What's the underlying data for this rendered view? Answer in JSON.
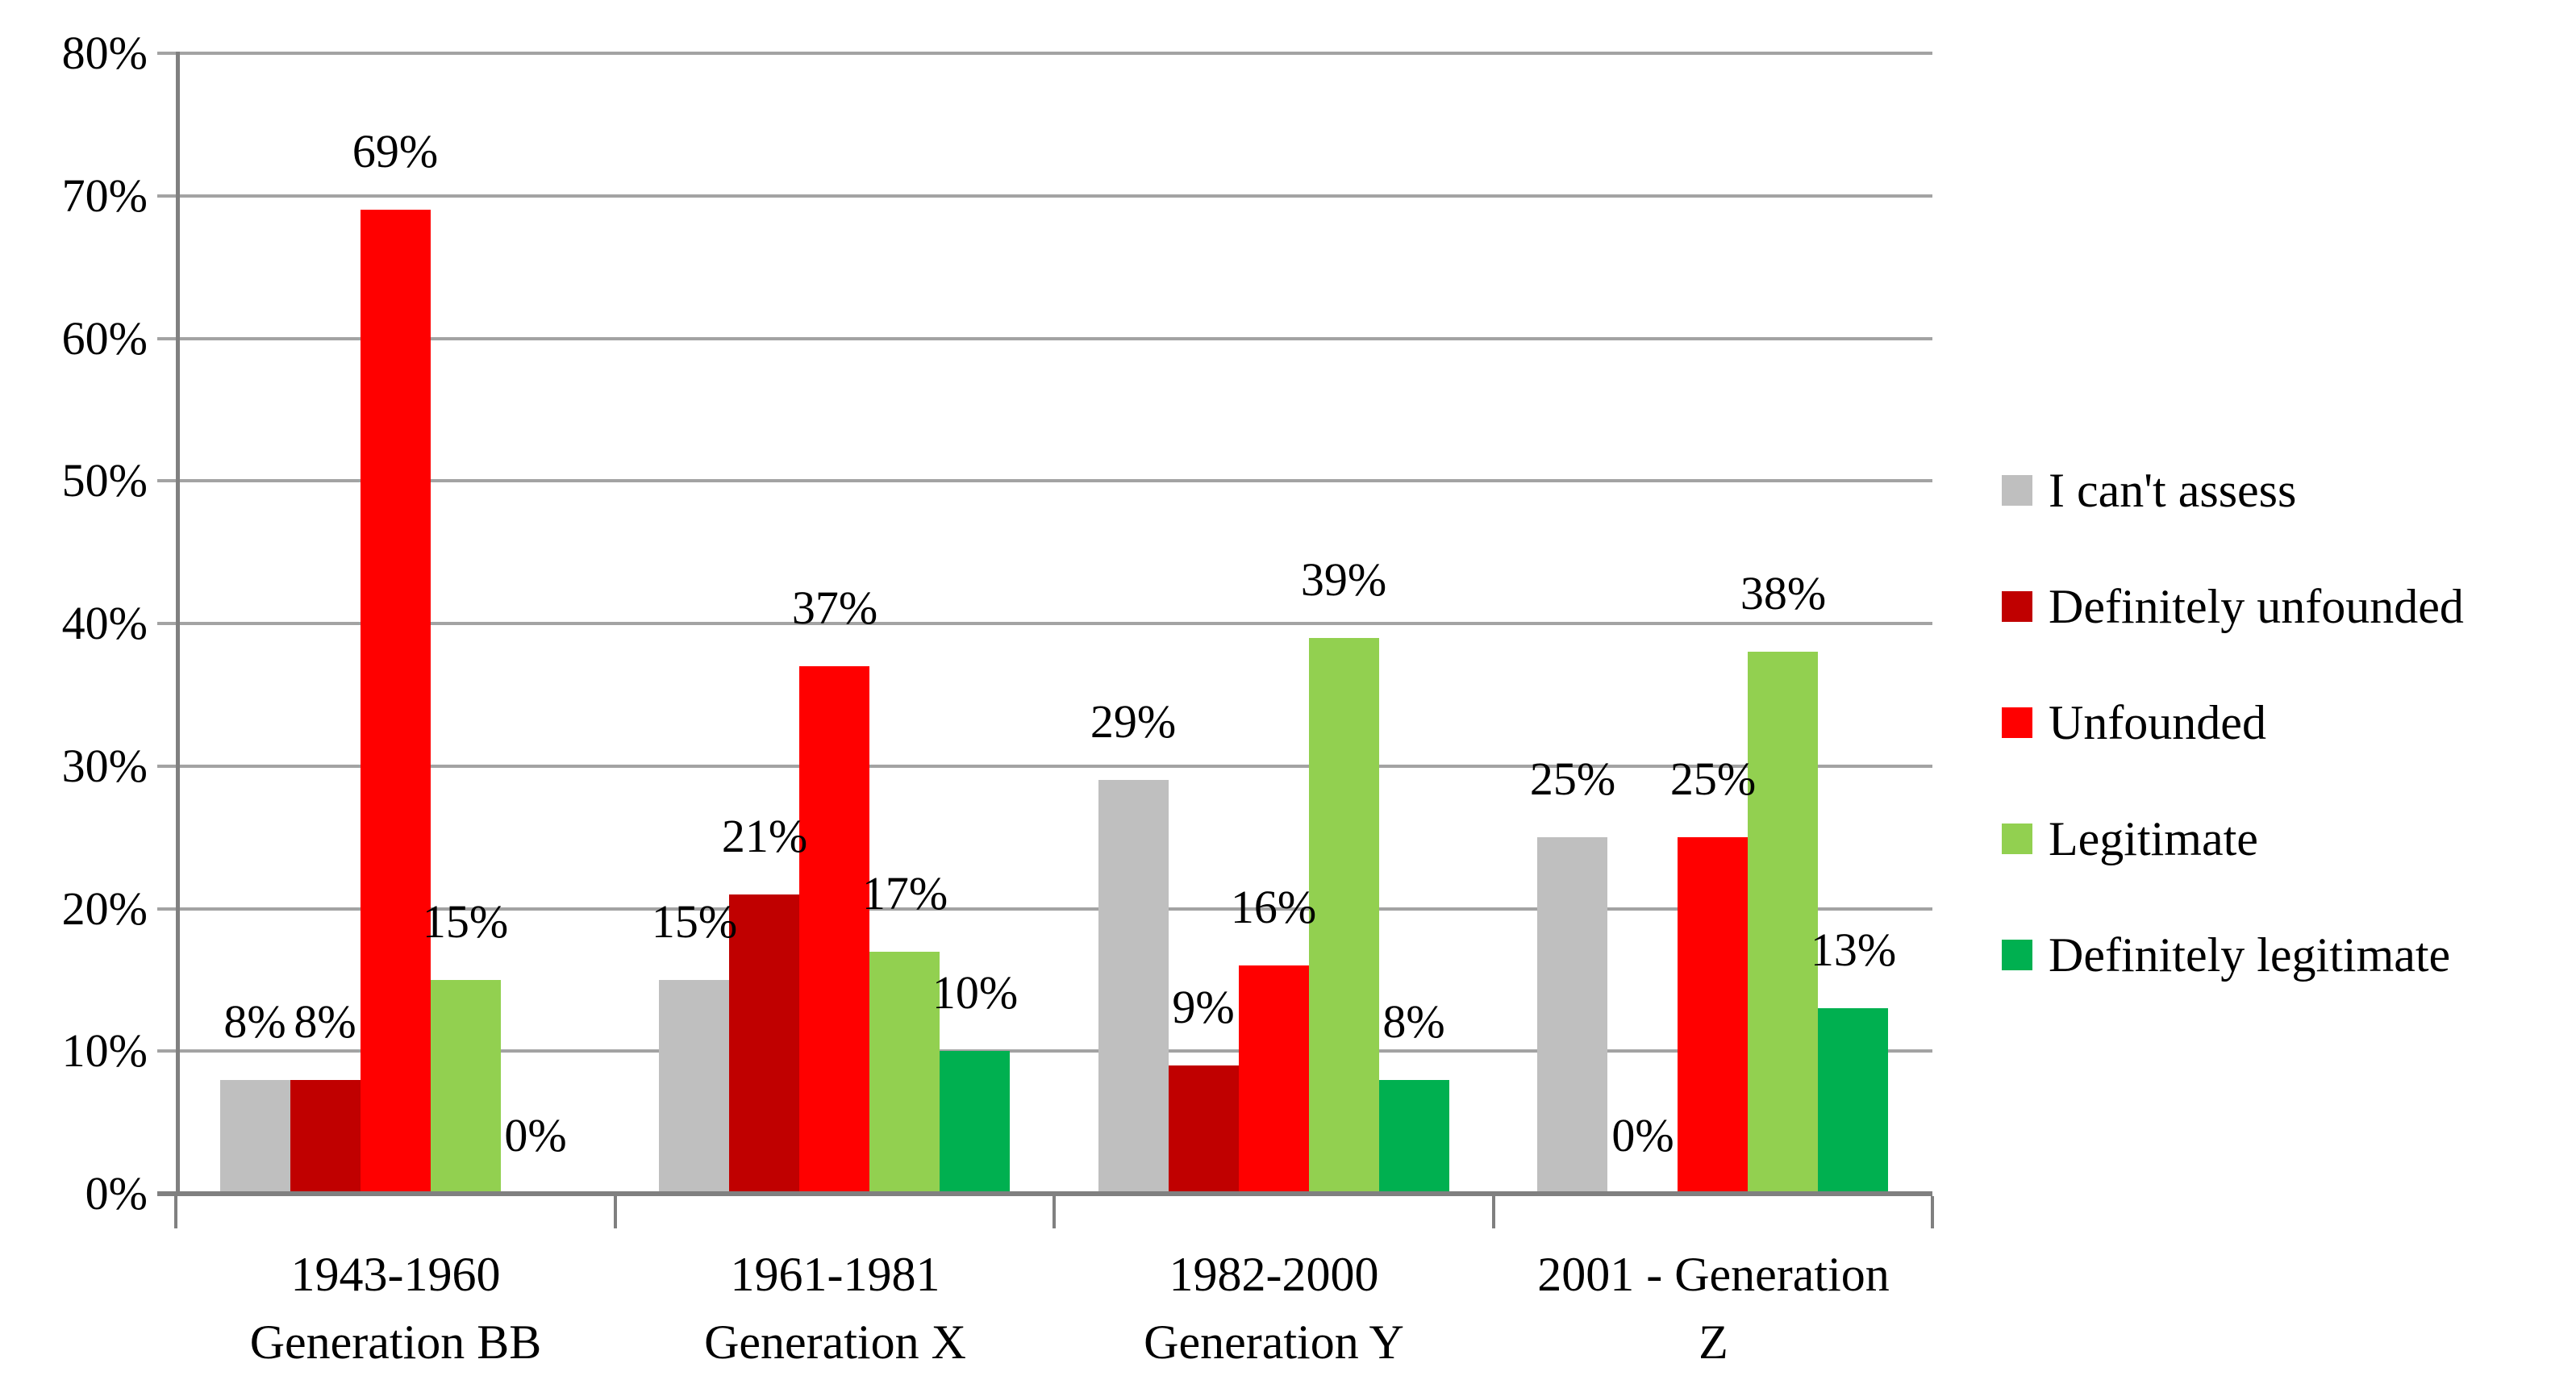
{
  "chart_data": {
    "type": "bar",
    "title": "",
    "xlabel": "",
    "ylabel": "",
    "categories": [
      {
        "line1": "1943-1960",
        "line2": "Generation BB"
      },
      {
        "line1": "1961-1981",
        "line2": "Generation X"
      },
      {
        "line1": "1982-2000",
        "line2": "Generation Y"
      },
      {
        "line1": "2001 - Generation",
        "line2": "Z"
      }
    ],
    "series": [
      {
        "name": "I can't assess",
        "color": "#BFBFBF",
        "values": [
          8,
          15,
          29,
          25
        ],
        "labels": [
          "8%",
          "15%",
          "29%",
          "25%"
        ]
      },
      {
        "name": "Definitely unfounded",
        "color": "#C00000",
        "values": [
          8,
          21,
          9,
          0
        ],
        "labels": [
          "8%",
          "21%",
          "9%",
          "0%"
        ]
      },
      {
        "name": "Unfounded",
        "color": "#FF0000",
        "values": [
          69,
          37,
          16,
          25
        ],
        "labels": [
          "69%",
          "37%",
          "16%",
          "25%"
        ]
      },
      {
        "name": "Legitimate",
        "color": "#92D050",
        "values": [
          15,
          17,
          39,
          38
        ],
        "labels": [
          "15%",
          "17%",
          "39%",
          "38%"
        ]
      },
      {
        "name": "Definitely legitimate",
        "color": "#00B050",
        "values": [
          0,
          10,
          8,
          13
        ],
        "labels": [
          "0%",
          "10%",
          "8%",
          "13%"
        ]
      }
    ],
    "y_axis": {
      "min": 0,
      "max": 80,
      "step": 10,
      "tick_labels": [
        "0%",
        "10%",
        "20%",
        "30%",
        "40%",
        "50%",
        "60%",
        "70%",
        "80%"
      ]
    },
    "grid": true,
    "legend_position": "right",
    "colors": {
      "gridline": "#A3A3A3",
      "axis": "#808080",
      "text": "#000000",
      "background": "#FFFFFF"
    }
  }
}
